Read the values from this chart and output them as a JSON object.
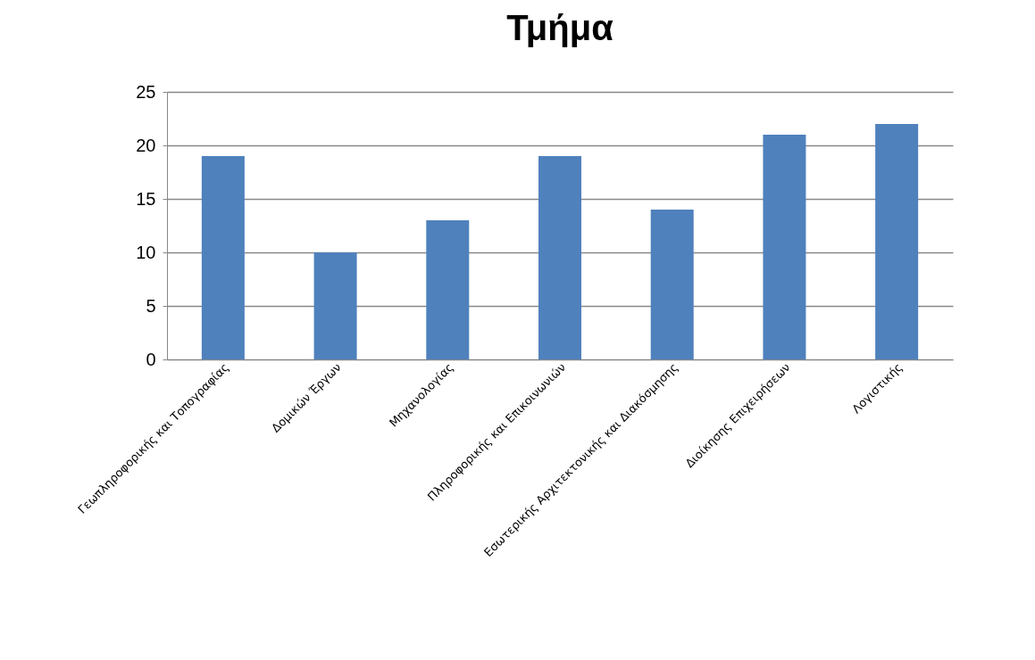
{
  "chart_data": {
    "type": "bar",
    "title": "Τμήμα",
    "categories": [
      "Γεωπληροφορικής και Τοπογραφίας",
      "Δομικών Έργων",
      "Μηχανολογίας",
      "Πληροφορικής και Επικοινωνιών",
      "Εσωτερικής Αρχιτεκτονικής και Διακόσμησης",
      "Διοίκησης Επιχειρήσεων",
      "Λογιστικής"
    ],
    "values": [
      19,
      10,
      13,
      19,
      14,
      21,
      22
    ],
    "color": "#4f81bd",
    "ylim": [
      0,
      25
    ],
    "yticks": [
      0,
      5,
      10,
      15,
      20,
      25
    ],
    "grid": true
  }
}
